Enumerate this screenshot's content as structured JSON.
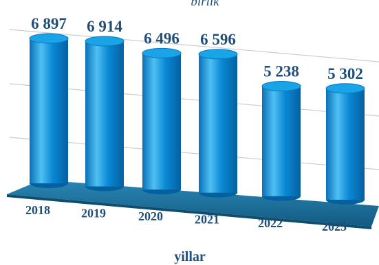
{
  "chart_data": {
    "type": "bar",
    "style": "3d-cylinder",
    "unit_label": "birlik",
    "xlabel": "yillar",
    "ylabel": "",
    "categories": [
      "2018",
      "2019",
      "2020",
      "2021",
      "2022",
      "2023"
    ],
    "values": [
      6897,
      6914,
      6496,
      6596,
      5238,
      5302
    ],
    "value_labels": [
      "6 897",
      "6 914",
      "6 496",
      "6 596",
      "5 238",
      "5 302"
    ],
    "grid": true,
    "legend": "none",
    "colors": {
      "bar_body": "#0a88d4",
      "bar_highlight": "#4fc0f2",
      "bar_shadow": "#0560a0",
      "bar_top": "#19a4e8",
      "floor": "#1a6f9c",
      "text": "#1f4e79",
      "grid": "#c9cdd3"
    }
  }
}
